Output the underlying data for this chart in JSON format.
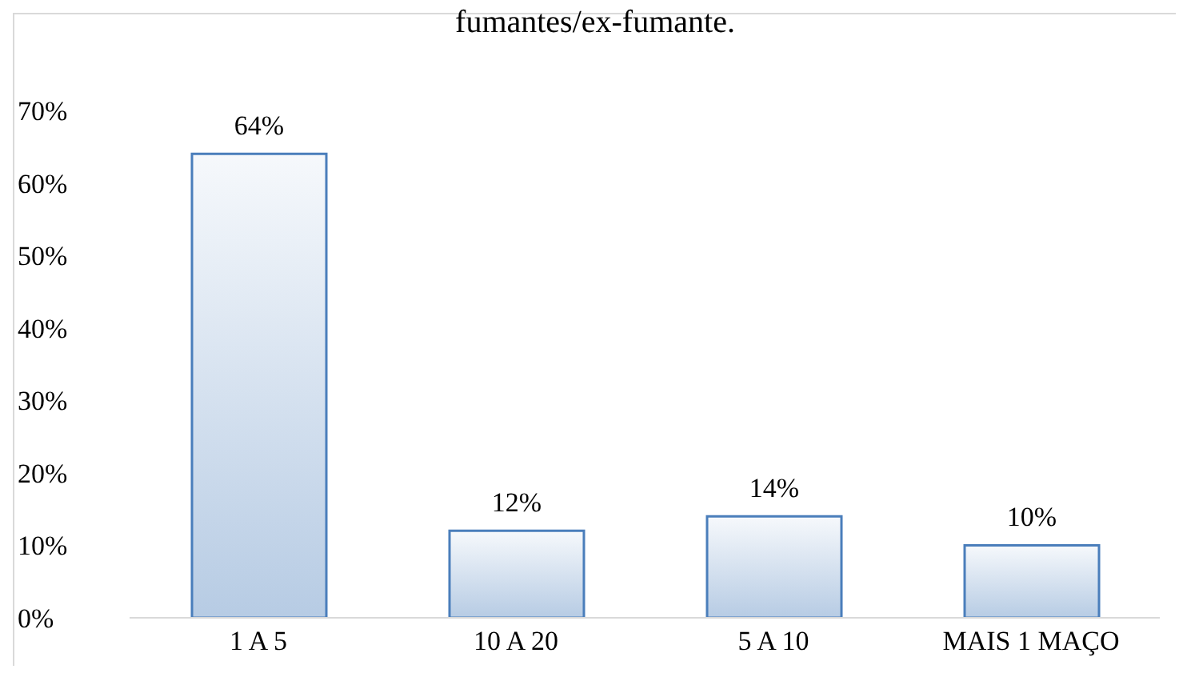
{
  "chart_data": {
    "type": "bar",
    "title": "fumantes/ex-fumante.",
    "categories": [
      "1 A 5",
      "10 A 20",
      "5 A 10",
      "MAIS 1 MAÇO"
    ],
    "values": [
      64,
      12,
      14,
      10
    ],
    "value_labels": [
      "64%",
      "12%",
      "14%",
      "10%"
    ],
    "color": "#4a7ebb",
    "ylim": [
      0,
      70
    ],
    "yticks": [
      {
        "value": 0,
        "label": "0%"
      },
      {
        "value": 10,
        "label": "10%"
      },
      {
        "value": 20,
        "label": "20%"
      },
      {
        "value": 30,
        "label": "30%"
      },
      {
        "value": 40,
        "label": "40%"
      },
      {
        "value": 50,
        "label": "50%"
      },
      {
        "value": 60,
        "label": "60%"
      },
      {
        "value": 70,
        "label": "70%"
      }
    ],
    "grid": false,
    "legend": false
  }
}
